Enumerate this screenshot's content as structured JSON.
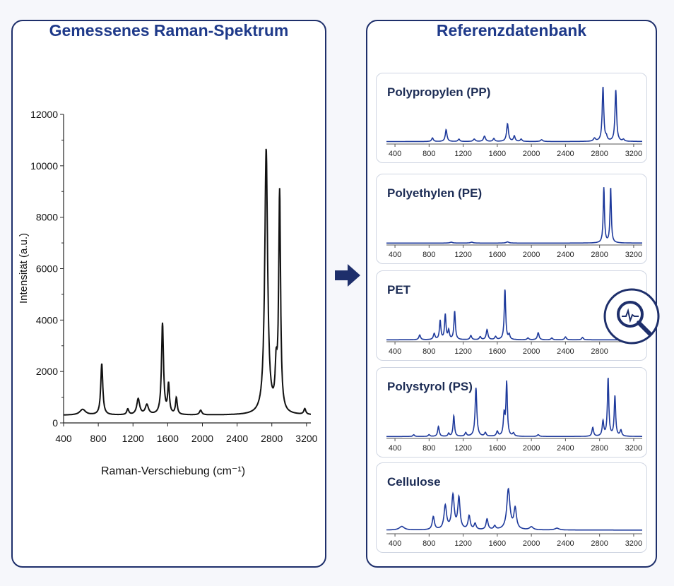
{
  "left_title": "Gemessenes Raman-Spektrum",
  "right_title": "Referenzdatenbank",
  "colors": {
    "border": "#1e2f6b",
    "title": "#1f3a8a",
    "measured": "#111111",
    "reference": "#1e3a9c"
  },
  "chart_data": [
    {
      "type": "line",
      "name": "measured",
      "xlabel": "Raman-Verschiebung (cm⁻¹)",
      "ylabel": "Intensität (a.u.)",
      "xlim": [
        400,
        3250
      ],
      "ylim": [
        0,
        12000
      ],
      "xticks": [
        400,
        800,
        1200,
        1600,
        2000,
        2400,
        2800,
        3200
      ],
      "yticks": [
        0,
        2000,
        4000,
        6000,
        8000,
        10000,
        12000
      ],
      "baseline": 300,
      "peaks": [
        {
          "x": 620,
          "y": 220,
          "w": 40
        },
        {
          "x": 840,
          "y": 2000,
          "w": 14
        },
        {
          "x": 1140,
          "y": 220,
          "w": 14
        },
        {
          "x": 1260,
          "y": 620,
          "w": 20
        },
        {
          "x": 1360,
          "y": 380,
          "w": 22
        },
        {
          "x": 1540,
          "y": 3550,
          "w": 14
        },
        {
          "x": 1610,
          "y": 1150,
          "w": 12
        },
        {
          "x": 1700,
          "y": 650,
          "w": 12
        },
        {
          "x": 1980,
          "y": 180,
          "w": 16
        },
        {
          "x": 2735,
          "y": 10300,
          "w": 20
        },
        {
          "x": 2850,
          "y": 1500,
          "w": 14
        },
        {
          "x": 2890,
          "y": 8500,
          "w": 13
        },
        {
          "x": 3180,
          "y": 220,
          "w": 14
        }
      ]
    },
    {
      "type": "line",
      "name": "Polypropylen (PP)",
      "xlim": [
        300,
        3300
      ],
      "ylim": [
        0,
        1
      ],
      "xticks": [
        400,
        800,
        1200,
        1600,
        2000,
        2400,
        2800,
        3200
      ],
      "baseline": 0.03,
      "peaks": [
        {
          "x": 840,
          "y": 0.06,
          "w": 12
        },
        {
          "x": 1000,
          "y": 0.2,
          "w": 12
        },
        {
          "x": 1150,
          "y": 0.04,
          "w": 12
        },
        {
          "x": 1330,
          "y": 0.04,
          "w": 15
        },
        {
          "x": 1450,
          "y": 0.09,
          "w": 14
        },
        {
          "x": 1560,
          "y": 0.05,
          "w": 12
        },
        {
          "x": 1720,
          "y": 0.3,
          "w": 13
        },
        {
          "x": 1800,
          "y": 0.09,
          "w": 12
        },
        {
          "x": 1880,
          "y": 0.04,
          "w": 12
        },
        {
          "x": 2120,
          "y": 0.03,
          "w": 15
        },
        {
          "x": 2740,
          "y": 0.05,
          "w": 15
        },
        {
          "x": 2840,
          "y": 0.92,
          "w": 11
        },
        {
          "x": 2880,
          "y": 0.06,
          "w": 10
        },
        {
          "x": 2990,
          "y": 0.87,
          "w": 11
        },
        {
          "x": 3080,
          "y": 0.03,
          "w": 12
        }
      ]
    },
    {
      "type": "line",
      "name": "Polyethylen (PE)",
      "xlim": [
        300,
        3300
      ],
      "ylim": [
        0,
        1
      ],
      "xticks": [
        400,
        800,
        1200,
        1600,
        2000,
        2400,
        2800,
        3200
      ],
      "baseline": 0.02,
      "peaks": [
        {
          "x": 1060,
          "y": 0.015,
          "w": 20
        },
        {
          "x": 1300,
          "y": 0.015,
          "w": 20
        },
        {
          "x": 1720,
          "y": 0.02,
          "w": 20
        },
        {
          "x": 2850,
          "y": 0.93,
          "w": 9
        },
        {
          "x": 2930,
          "y": 0.93,
          "w": 9
        }
      ]
    },
    {
      "type": "line",
      "name": "PET",
      "xlim": [
        300,
        3300
      ],
      "ylim": [
        0,
        1
      ],
      "xticks": [
        400,
        800,
        1200,
        1600,
        2000,
        2400,
        2800
      ],
      "baseline": 0.02,
      "peaks": [
        {
          "x": 690,
          "y": 0.08,
          "w": 12
        },
        {
          "x": 860,
          "y": 0.1,
          "w": 12
        },
        {
          "x": 930,
          "y": 0.32,
          "w": 10
        },
        {
          "x": 990,
          "y": 0.42,
          "w": 10
        },
        {
          "x": 1030,
          "y": 0.15,
          "w": 10
        },
        {
          "x": 1100,
          "y": 0.48,
          "w": 10
        },
        {
          "x": 1290,
          "y": 0.07,
          "w": 12
        },
        {
          "x": 1400,
          "y": 0.05,
          "w": 12
        },
        {
          "x": 1480,
          "y": 0.17,
          "w": 12
        },
        {
          "x": 1580,
          "y": 0.05,
          "w": 12
        },
        {
          "x": 1690,
          "y": 0.85,
          "w": 10
        },
        {
          "x": 1740,
          "y": 0.08,
          "w": 10
        },
        {
          "x": 1960,
          "y": 0.03,
          "w": 12
        },
        {
          "x": 2080,
          "y": 0.12,
          "w": 12
        },
        {
          "x": 2240,
          "y": 0.03,
          "w": 12
        },
        {
          "x": 2400,
          "y": 0.05,
          "w": 12
        },
        {
          "x": 2600,
          "y": 0.04,
          "w": 12
        }
      ]
    },
    {
      "type": "line",
      "name": "Polystyrol (PS)",
      "xlim": [
        300,
        3300
      ],
      "ylim": [
        0,
        1
      ],
      "xticks": [
        400,
        800,
        1200,
        1600,
        2000,
        2400,
        2800,
        3200
      ],
      "baseline": 0.02,
      "peaks": [
        {
          "x": 620,
          "y": 0.03,
          "w": 12
        },
        {
          "x": 800,
          "y": 0.03,
          "w": 12
        },
        {
          "x": 910,
          "y": 0.17,
          "w": 11
        },
        {
          "x": 1030,
          "y": 0.05,
          "w": 10
        },
        {
          "x": 1090,
          "y": 0.35,
          "w": 10
        },
        {
          "x": 1230,
          "y": 0.06,
          "w": 12
        },
        {
          "x": 1350,
          "y": 0.82,
          "w": 12
        },
        {
          "x": 1460,
          "y": 0.06,
          "w": 12
        },
        {
          "x": 1600,
          "y": 0.08,
          "w": 12
        },
        {
          "x": 1680,
          "y": 0.35,
          "w": 11
        },
        {
          "x": 1710,
          "y": 0.9,
          "w": 10
        },
        {
          "x": 1790,
          "y": 0.05,
          "w": 12
        },
        {
          "x": 2080,
          "y": 0.03,
          "w": 14
        },
        {
          "x": 2720,
          "y": 0.15,
          "w": 11
        },
        {
          "x": 2840,
          "y": 0.25,
          "w": 11
        },
        {
          "x": 2900,
          "y": 0.98,
          "w": 10
        },
        {
          "x": 2980,
          "y": 0.68,
          "w": 10
        },
        {
          "x": 3050,
          "y": 0.1,
          "w": 12
        }
      ]
    },
    {
      "type": "line",
      "name": "Cellulose",
      "xlim": [
        300,
        3300
      ],
      "ylim": [
        0,
        1
      ],
      "xticks": [
        400,
        800,
        1200,
        1600,
        2000,
        2400,
        2800,
        3200
      ],
      "baseline": 0.05,
      "peaks": [
        {
          "x": 480,
          "y": 0.06,
          "w": 35
        },
        {
          "x": 850,
          "y": 0.22,
          "w": 15
        },
        {
          "x": 990,
          "y": 0.4,
          "w": 18
        },
        {
          "x": 1080,
          "y": 0.57,
          "w": 18
        },
        {
          "x": 1150,
          "y": 0.53,
          "w": 16
        },
        {
          "x": 1270,
          "y": 0.23,
          "w": 15
        },
        {
          "x": 1340,
          "y": 0.1,
          "w": 14
        },
        {
          "x": 1480,
          "y": 0.18,
          "w": 14
        },
        {
          "x": 1570,
          "y": 0.06,
          "w": 14
        },
        {
          "x": 1730,
          "y": 0.68,
          "w": 22
        },
        {
          "x": 1810,
          "y": 0.35,
          "w": 18
        },
        {
          "x": 2000,
          "y": 0.05,
          "w": 25
        },
        {
          "x": 2300,
          "y": 0.03,
          "w": 30
        }
      ]
    }
  ]
}
